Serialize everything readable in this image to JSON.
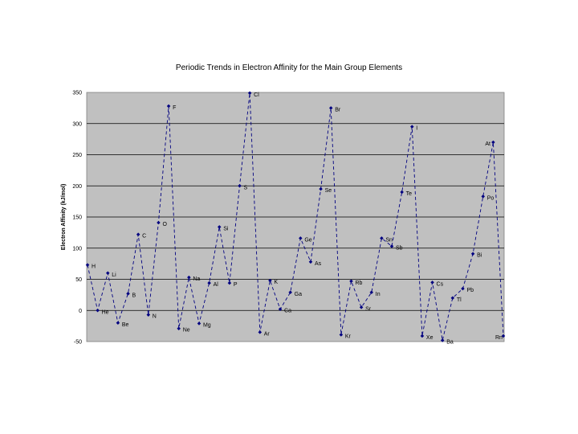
{
  "chart_data": {
    "type": "line",
    "title": "Periodic Trends in Electron Affinity for the Main Group Elements",
    "ylabel": "Electron Affinity (kJ/mol)",
    "xlabel": "",
    "ylim": [
      -50,
      350
    ],
    "yticks": [
      "-50",
      "0",
      "50",
      "100",
      "150",
      "200",
      "250",
      "300",
      "350"
    ],
    "grid": "horizontal",
    "legend": "none",
    "colors": {
      "series": "#000080",
      "plot_bg": "#c0c0c0",
      "grid": "#000000"
    },
    "series": [
      {
        "labels": [
          "H",
          "He",
          "Li",
          "Be",
          "B",
          "C",
          "N",
          "O",
          "F",
          "Ne",
          "Na",
          "Mg",
          "Al",
          "Si",
          "P",
          "S",
          "Cl",
          "Ar",
          "K",
          "Ca",
          "Ga",
          "Ge",
          "As",
          "Se",
          "Br",
          "Kr",
          "Rb",
          "Sr",
          "In",
          "Sn",
          "Sb",
          "Te",
          "I",
          "Xe",
          "Cs",
          "Ba",
          "Tl",
          "Pb",
          "Bi",
          "Po",
          "At",
          "Rn"
        ],
        "values": [
          73,
          0,
          60,
          -20,
          27,
          122,
          -7,
          141,
          328,
          -29,
          53,
          -21,
          44,
          134,
          44,
          200,
          349,
          -35,
          48,
          2,
          29,
          116,
          78,
          195,
          325,
          -39,
          47,
          5,
          29,
          116,
          103,
          190,
          295,
          -41,
          45,
          -48,
          20,
          35,
          91,
          183,
          270,
          -41
        ]
      }
    ]
  }
}
